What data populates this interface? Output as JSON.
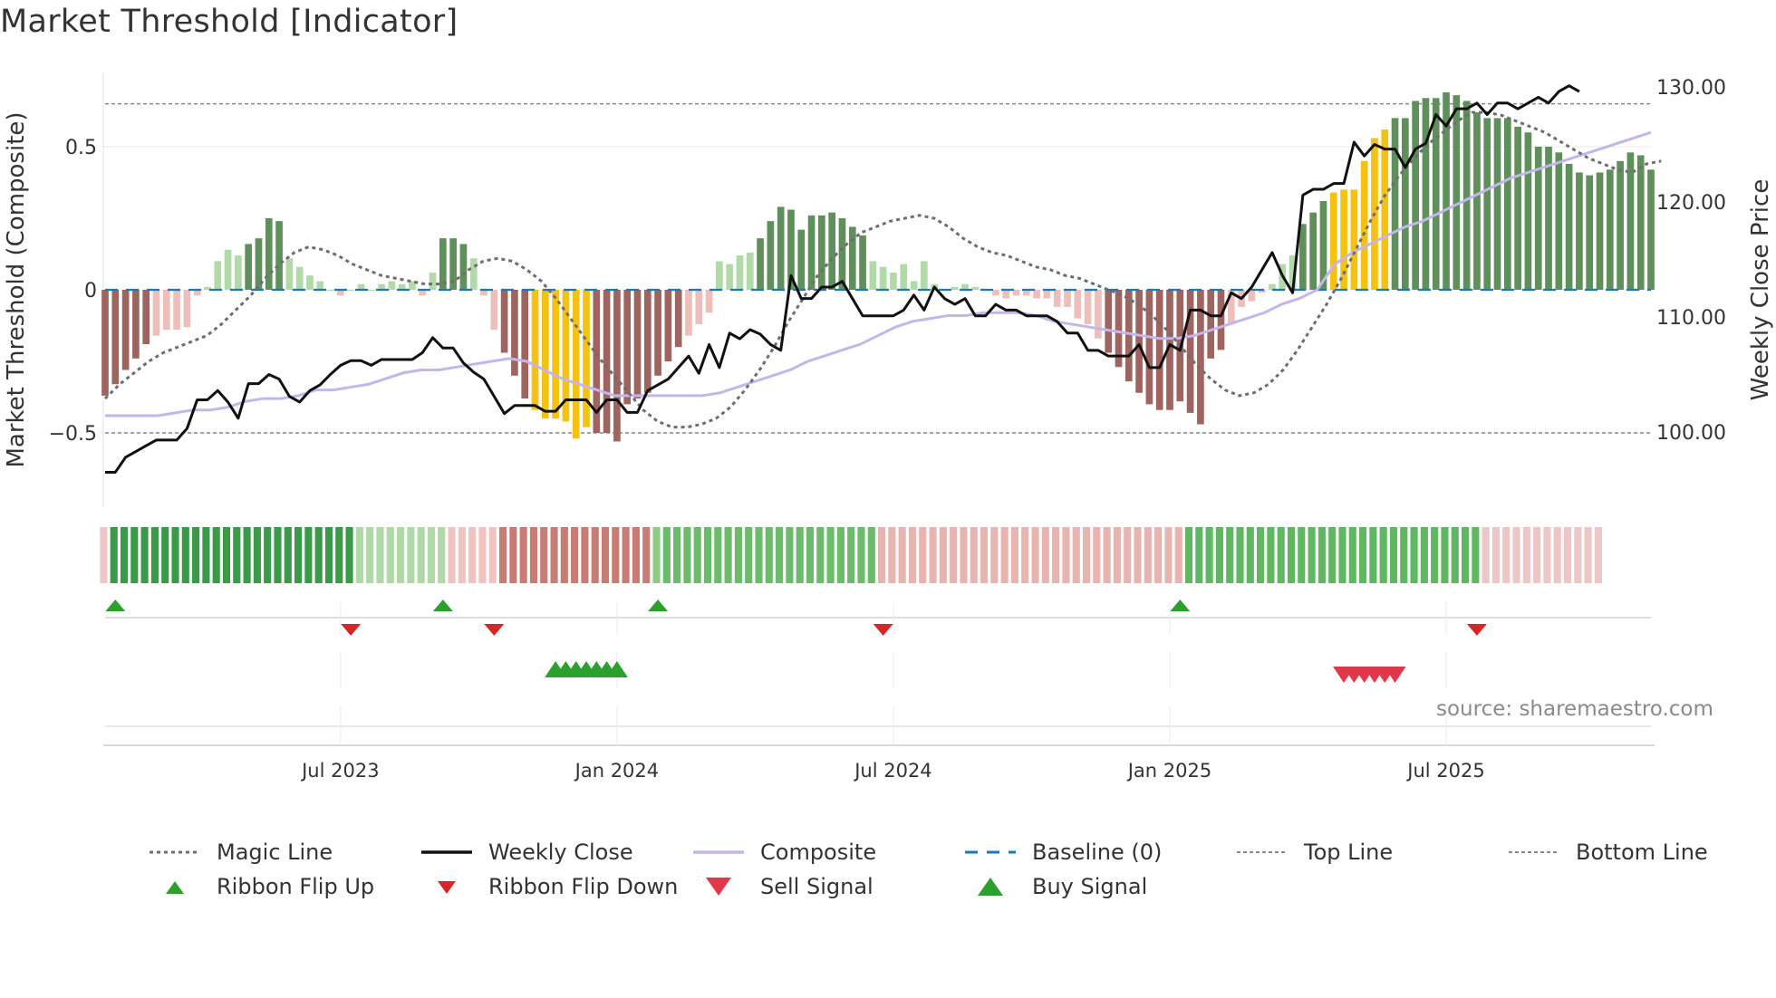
{
  "title": "Market Threshold [Indicator]",
  "source": "source: sharemaestro.com",
  "colors": {
    "magic": "#6e6e6e",
    "close": "#111111",
    "composite": "#c4b6ea",
    "baseline": "#1f77b4",
    "topline": "#888888",
    "bar_pos_strong": "#5f8f5b",
    "bar_pos_weak": "#b2d9a8",
    "bar_neg_strong": "#9e6560",
    "bar_neg_weak": "#ecbfbb",
    "bar_signal": "#f5c211",
    "flip_up": "#2ca02c",
    "flip_down": "#d62728",
    "buy": "#2ca02c",
    "sell": "#e0374a"
  },
  "legend": {
    "magic": "Magic Line",
    "close": "Weekly Close",
    "composite": "Composite",
    "baseline": "Baseline (0)",
    "top": "Top Line",
    "bottom": "Bottom Line",
    "flip_up": "Ribbon Flip Up",
    "flip_down": "Ribbon Flip Down",
    "sell": "Sell Signal",
    "buy": "Buy Signal"
  },
  "chart_data": {
    "type": "bar",
    "title": "Market Threshold [Indicator]",
    "ylabel": "Market Threshold (Composite)",
    "y2label": "Weekly Close Price",
    "ylim": [
      -0.75,
      0.75
    ],
    "y2lim": [
      95,
      133
    ],
    "yticks": [
      {
        "v": 0.5,
        "label": "0.5"
      },
      {
        "v": 0,
        "label": "0"
      },
      {
        "v": -0.5,
        "label": "−0.5"
      }
    ],
    "y2ticks": [
      {
        "v": 130,
        "label": "130.00"
      },
      {
        "v": 120,
        "label": "120.00"
      },
      {
        "v": 110,
        "label": "110.00"
      },
      {
        "v": 100,
        "label": "100.00"
      }
    ],
    "top_line": 0.65,
    "bottom_line": -0.5,
    "xticks": [
      {
        "i": 23,
        "label": "Jul 2023"
      },
      {
        "i": 50,
        "label": "Jan 2024"
      },
      {
        "i": 77,
        "label": "Jul 2024"
      },
      {
        "i": 104,
        "label": "Jan 2025"
      },
      {
        "i": 131,
        "label": "Jul 2025"
      }
    ],
    "composite_bars": [
      -0.37,
      -0.33,
      -0.28,
      -0.24,
      -0.19,
      -0.16,
      -0.14,
      -0.14,
      -0.13,
      -0.02,
      0.01,
      0.1,
      0.14,
      0.12,
      0.16,
      0.18,
      0.25,
      0.24,
      0.11,
      0.08,
      0.05,
      0.03,
      0.0,
      -0.02,
      0.0,
      0.02,
      0.0,
      0.02,
      0.03,
      0.02,
      0.03,
      -0.02,
      0.06,
      0.18,
      0.18,
      0.16,
      0.11,
      -0.02,
      -0.14,
      -0.22,
      -0.3,
      -0.38,
      -0.42,
      -0.45,
      -0.45,
      -0.46,
      -0.52,
      -0.48,
      -0.5,
      -0.5,
      -0.53,
      -0.4,
      -0.38,
      -0.36,
      -0.3,
      -0.25,
      -0.2,
      -0.16,
      -0.12,
      -0.08,
      0.1,
      0.09,
      0.12,
      0.13,
      0.18,
      0.24,
      0.29,
      0.28,
      0.21,
      0.26,
      0.26,
      0.27,
      0.25,
      0.22,
      0.19,
      0.1,
      0.08,
      0.06,
      0.09,
      0.03,
      0.1,
      0.02,
      0.0,
      0.01,
      0.02,
      0.01,
      0.0,
      -0.02,
      -0.03,
      -0.02,
      -0.02,
      -0.03,
      -0.03,
      -0.06,
      -0.06,
      -0.1,
      -0.12,
      -0.17,
      -0.22,
      -0.27,
      -0.32,
      -0.36,
      -0.4,
      -0.42,
      -0.42,
      -0.39,
      -0.43,
      -0.47,
      -0.24,
      -0.21,
      -0.12,
      -0.06,
      -0.04,
      -0.01,
      0.02,
      0.09,
      0.12,
      0.23,
      0.27,
      0.31,
      0.34,
      0.35,
      0.35,
      0.45,
      0.53,
      0.56,
      0.6,
      0.6,
      0.66,
      0.67,
      0.67,
      0.69,
      0.68,
      0.66,
      0.62,
      0.6,
      0.6,
      0.6,
      0.57,
      0.55,
      0.5,
      0.5,
      0.48,
      0.44,
      0.41,
      0.4,
      0.41,
      0.42,
      0.45,
      0.48,
      0.47,
      0.42
    ],
    "bar_signal_ranges": [
      [
        42,
        47
      ],
      [
        120,
        125
      ]
    ],
    "magic_line": [
      -0.38,
      -0.33,
      -0.29,
      -0.25,
      -0.22,
      -0.2,
      -0.18,
      -0.16,
      -0.12,
      -0.07,
      -0.02,
      0.04,
      0.09,
      0.13,
      0.15,
      0.14,
      0.12,
      0.09,
      0.07,
      0.05,
      0.04,
      0.03,
      0.02,
      0.02,
      0.03,
      0.07,
      0.1,
      0.11,
      0.1,
      0.07,
      0.03,
      -0.03,
      -0.1,
      -0.17,
      -0.24,
      -0.3,
      -0.36,
      -0.42,
      -0.46,
      -0.48,
      -0.48,
      -0.47,
      -0.45,
      -0.41,
      -0.35,
      -0.28,
      -0.2,
      -0.11,
      -0.03,
      0.05,
      0.11,
      0.16,
      0.2,
      0.22,
      0.24,
      0.25,
      0.26,
      0.25,
      0.22,
      0.18,
      0.15,
      0.13,
      0.12,
      0.1,
      0.08,
      0.07,
      0.05,
      0.04,
      0.02,
      0.0,
      -0.02,
      -0.05,
      -0.09,
      -0.14,
      -0.2,
      -0.26,
      -0.31,
      -0.35,
      -0.37,
      -0.36,
      -0.33,
      -0.28,
      -0.21,
      -0.13,
      -0.05,
      0.04,
      0.14,
      0.24,
      0.33,
      0.4,
      0.46,
      0.51,
      0.55,
      0.59,
      0.62,
      0.62,
      0.61,
      0.59,
      0.57,
      0.55,
      0.52,
      0.49,
      0.46,
      0.44,
      0.42,
      0.41,
      0.44,
      0.45
    ],
    "magic_line_x_end": 152,
    "composite_line": [
      -0.44,
      -0.44,
      -0.44,
      -0.44,
      -0.43,
      -0.42,
      -0.42,
      -0.41,
      -0.39,
      -0.38,
      -0.38,
      -0.37,
      -0.35,
      -0.35,
      -0.34,
      -0.33,
      -0.31,
      -0.29,
      -0.28,
      -0.28,
      -0.27,
      -0.26,
      -0.25,
      -0.24,
      -0.25,
      -0.28,
      -0.31,
      -0.33,
      -0.35,
      -0.37,
      -0.37,
      -0.37,
      -0.37,
      -0.37,
      -0.37,
      -0.36,
      -0.34,
      -0.32,
      -0.3,
      -0.28,
      -0.25,
      -0.23,
      -0.21,
      -0.19,
      -0.16,
      -0.13,
      -0.11,
      -0.1,
      -0.09,
      -0.09,
      -0.08,
      -0.08,
      -0.08,
      -0.09,
      -0.11,
      -0.12,
      -0.13,
      -0.14,
      -0.15,
      -0.16,
      -0.17,
      -0.17,
      -0.16,
      -0.14,
      -0.12,
      -0.1,
      -0.08,
      -0.05,
      -0.03,
      0.0,
      0.09,
      0.13,
      0.16,
      0.19,
      0.22,
      0.24,
      0.27,
      0.3,
      0.33,
      0.36,
      0.39,
      0.41,
      0.43,
      0.45,
      0.47,
      0.49,
      0.51,
      0.53,
      0.55
    ],
    "composite_line_x_start": 0,
    "close_points": [
      [
        0,
        96.5
      ],
      [
        1,
        96.5
      ],
      [
        2,
        97.8
      ],
      [
        3,
        98.3
      ],
      [
        4,
        98.8
      ],
      [
        5,
        99.3
      ],
      [
        6,
        99.3
      ],
      [
        7,
        99.3
      ],
      [
        8,
        100.3
      ],
      [
        9,
        102.8
      ],
      [
        10,
        102.8
      ],
      [
        11,
        103.6
      ],
      [
        12,
        102.6
      ],
      [
        13,
        101.2
      ],
      [
        14,
        104.2
      ],
      [
        15,
        104.2
      ],
      [
        16,
        105
      ],
      [
        17,
        104.6
      ],
      [
        18,
        103.1
      ],
      [
        19,
        102.6
      ],
      [
        20,
        103.6
      ],
      [
        21,
        104.1
      ],
      [
        22,
        105
      ],
      [
        23,
        105.8
      ],
      [
        24,
        106.2
      ],
      [
        25,
        106.2
      ],
      [
        26,
        105.8
      ],
      [
        27,
        106.3
      ],
      [
        28,
        106.3
      ],
      [
        29,
        106.3
      ],
      [
        30,
        106.3
      ],
      [
        31,
        106.9
      ],
      [
        32,
        108.2
      ],
      [
        33,
        107.3
      ],
      [
        34,
        107.3
      ],
      [
        35,
        106
      ],
      [
        36,
        105.2
      ],
      [
        37,
        104.6
      ],
      [
        38,
        103.1
      ],
      [
        39,
        101.6
      ],
      [
        40,
        102.3
      ],
      [
        41,
        102.3
      ],
      [
        42,
        102.3
      ],
      [
        43,
        101.8
      ],
      [
        44,
        101.8
      ],
      [
        45,
        102.8
      ],
      [
        46,
        102.8
      ],
      [
        47,
        102.8
      ],
      [
        48,
        101.7
      ],
      [
        49,
        102.8
      ],
      [
        50,
        102.8
      ],
      [
        51,
        101.7
      ],
      [
        52,
        101.7
      ],
      [
        53,
        103.6
      ],
      [
        54,
        104.1
      ],
      [
        55,
        104.6
      ],
      [
        56,
        105.6
      ],
      [
        57,
        106.6
      ],
      [
        58,
        105.1
      ],
      [
        59,
        107.6
      ],
      [
        60,
        105.6
      ],
      [
        61,
        108.6
      ],
      [
        62,
        108.1
      ],
      [
        63,
        108.9
      ],
      [
        64,
        108.5
      ],
      [
        65,
        107.6
      ],
      [
        66,
        107.1
      ],
      [
        67,
        113.6
      ],
      [
        68,
        111.6
      ],
      [
        69,
        111.6
      ],
      [
        70,
        112.6
      ],
      [
        71,
        112.6
      ],
      [
        72,
        113.1
      ],
      [
        73,
        111.6
      ],
      [
        74,
        110.1
      ],
      [
        75,
        110.1
      ],
      [
        76,
        110.1
      ],
      [
        77,
        110.1
      ],
      [
        78,
        110.6
      ],
      [
        79,
        111.9
      ],
      [
        80,
        110.6
      ],
      [
        81,
        112.6
      ],
      [
        82,
        111.6
      ],
      [
        83,
        111.1
      ],
      [
        84,
        111.6
      ],
      [
        85,
        110.1
      ],
      [
        86,
        110.1
      ],
      [
        87,
        111.1
      ],
      [
        88,
        110.6
      ],
      [
        89,
        110.6
      ],
      [
        90,
        110.1
      ],
      [
        91,
        110.1
      ],
      [
        92,
        110.1
      ],
      [
        93,
        109.6
      ],
      [
        94,
        108.6
      ],
      [
        95,
        108.6
      ],
      [
        96,
        107.1
      ],
      [
        97,
        107.1
      ],
      [
        98,
        106.6
      ],
      [
        99,
        106.6
      ],
      [
        100,
        106.6
      ],
      [
        101,
        107.6
      ],
      [
        102,
        105.6
      ],
      [
        103,
        105.6
      ],
      [
        104,
        107.6
      ],
      [
        105,
        107.1
      ],
      [
        106,
        110.6
      ],
      [
        107,
        110.6
      ],
      [
        108,
        110.1
      ],
      [
        109,
        110.1
      ],
      [
        110,
        112.1
      ],
      [
        111,
        111.6
      ],
      [
        112,
        112.6
      ],
      [
        113,
        114.1
      ],
      [
        114,
        115.6
      ],
      [
        115,
        113.6
      ],
      [
        116,
        112.1
      ],
      [
        117,
        120.6
      ],
      [
        118,
        121.1
      ],
      [
        119,
        121.1
      ],
      [
        120,
        121.6
      ],
      [
        121,
        121.6
      ],
      [
        122,
        125.2
      ],
      [
        123,
        124
      ],
      [
        124,
        125
      ],
      [
        125,
        124.6
      ],
      [
        126,
        124.6
      ],
      [
        127,
        123
      ],
      [
        128,
        124.6
      ],
      [
        129,
        125.1
      ],
      [
        130,
        127.6
      ],
      [
        131,
        126.6
      ],
      [
        132,
        128.1
      ],
      [
        133,
        128.1
      ],
      [
        134,
        128.6
      ],
      [
        135,
        127.6
      ],
      [
        136,
        128.6
      ],
      [
        137,
        128.6
      ],
      [
        138,
        128.1
      ],
      [
        139,
        128.6
      ],
      [
        140,
        129.1
      ],
      [
        141,
        128.6
      ],
      [
        142,
        129.6
      ],
      [
        143,
        130.1
      ],
      [
        144,
        129.6
      ]
    ],
    "ribbon_bands": [
      {
        "n": 1,
        "c": "#ecc7c5"
      },
      {
        "n": 24,
        "c": "#3a9a48"
      },
      {
        "n": 9,
        "c": "#b0d9a8"
      },
      {
        "n": 5,
        "c": "#efc4c0"
      },
      {
        "n": 15,
        "c": "#c87c74"
      },
      {
        "n": 1,
        "c": "#8fca86"
      },
      {
        "n": 21,
        "c": "#6cbb6b"
      },
      {
        "n": 30,
        "c": "#e7b4b0"
      },
      {
        "n": 29,
        "c": "#5fb762"
      },
      {
        "n": 12,
        "c": "#ecc7c5"
      }
    ],
    "ribbon_flip_up": [
      1,
      33,
      54,
      105
    ],
    "ribbon_flip_down": [
      24,
      38,
      76,
      134
    ],
    "buy_signals": [
      44,
      45,
      46,
      47,
      48,
      49,
      50
    ],
    "sell_signals": [
      121,
      122,
      123,
      124,
      125,
      126
    ],
    "n_points": 152
  }
}
